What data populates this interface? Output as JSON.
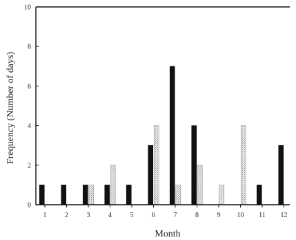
{
  "chart_data": {
    "type": "bar",
    "title": "",
    "xlabel": "Month",
    "ylabel": "Frequency (Number of days)",
    "categories": [
      "1",
      "2",
      "3",
      "4",
      "5",
      "6",
      "7",
      "8",
      "9",
      "10",
      "11",
      "12"
    ],
    "ylim": [
      0,
      10
    ],
    "yticks": [
      "0",
      "2",
      "4",
      "6",
      "8",
      "10"
    ],
    "grid": false,
    "series": [
      {
        "values": [
          1,
          1,
          1,
          1,
          1,
          3,
          7,
          4,
          0,
          0,
          1,
          3
        ],
        "color": "#111111",
        "pattern": "solid"
      },
      {
        "values": [
          0,
          0,
          1,
          2,
          0,
          4,
          1,
          2,
          1,
          4,
          0,
          0
        ],
        "color": "#d9d9d9",
        "pattern": "stipple"
      }
    ]
  }
}
